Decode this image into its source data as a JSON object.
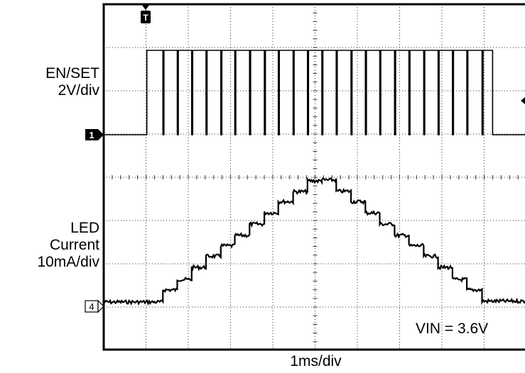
{
  "chart_data": {
    "type": "line",
    "xlabel": "1ms/div",
    "grid": true,
    "trigger_marker": "T",
    "annotation": "VIN = 3.6V",
    "channels": [
      {
        "marker": "1",
        "label_lines": [
          "EN/SET",
          "2V/div"
        ],
        "waveform": "pulse-train",
        "x_start_div": 1.02,
        "x_end_div": 9.2,
        "low_level_div": 1.05,
        "high_level_div": 3.0,
        "pulse_times_div": [
          1.4,
          1.74,
          2.08,
          2.42,
          2.77,
          3.1,
          3.45,
          3.8,
          4.13,
          4.48,
          4.82,
          5.16,
          5.5,
          5.85,
          6.19,
          6.53,
          6.88,
          7.22,
          7.57,
          7.91,
          8.25,
          8.59,
          8.95
        ]
      },
      {
        "marker": "4",
        "label_lines": [
          "LED",
          "Current",
          "10mA/div"
        ],
        "waveform": "staircase",
        "points_div": [
          [
            0,
            0.1
          ],
          [
            1.0,
            0.1
          ],
          [
            1.4,
            0.38
          ],
          [
            1.74,
            0.62
          ],
          [
            2.08,
            0.9
          ],
          [
            2.42,
            1.16
          ],
          [
            2.77,
            1.4
          ],
          [
            3.1,
            1.64
          ],
          [
            3.45,
            1.9
          ],
          [
            3.8,
            2.16
          ],
          [
            4.13,
            2.42
          ],
          [
            4.48,
            2.65
          ],
          [
            4.82,
            2.9
          ],
          [
            5.16,
            2.92
          ],
          [
            5.5,
            2.66
          ],
          [
            5.85,
            2.42
          ],
          [
            6.19,
            2.16
          ],
          [
            6.53,
            1.9
          ],
          [
            6.88,
            1.64
          ],
          [
            7.22,
            1.4
          ],
          [
            7.57,
            1.16
          ],
          [
            7.91,
            0.9
          ],
          [
            8.25,
            0.62
          ],
          [
            8.59,
            0.38
          ],
          [
            8.95,
            0.12
          ],
          [
            10,
            0.12
          ]
        ]
      }
    ]
  }
}
